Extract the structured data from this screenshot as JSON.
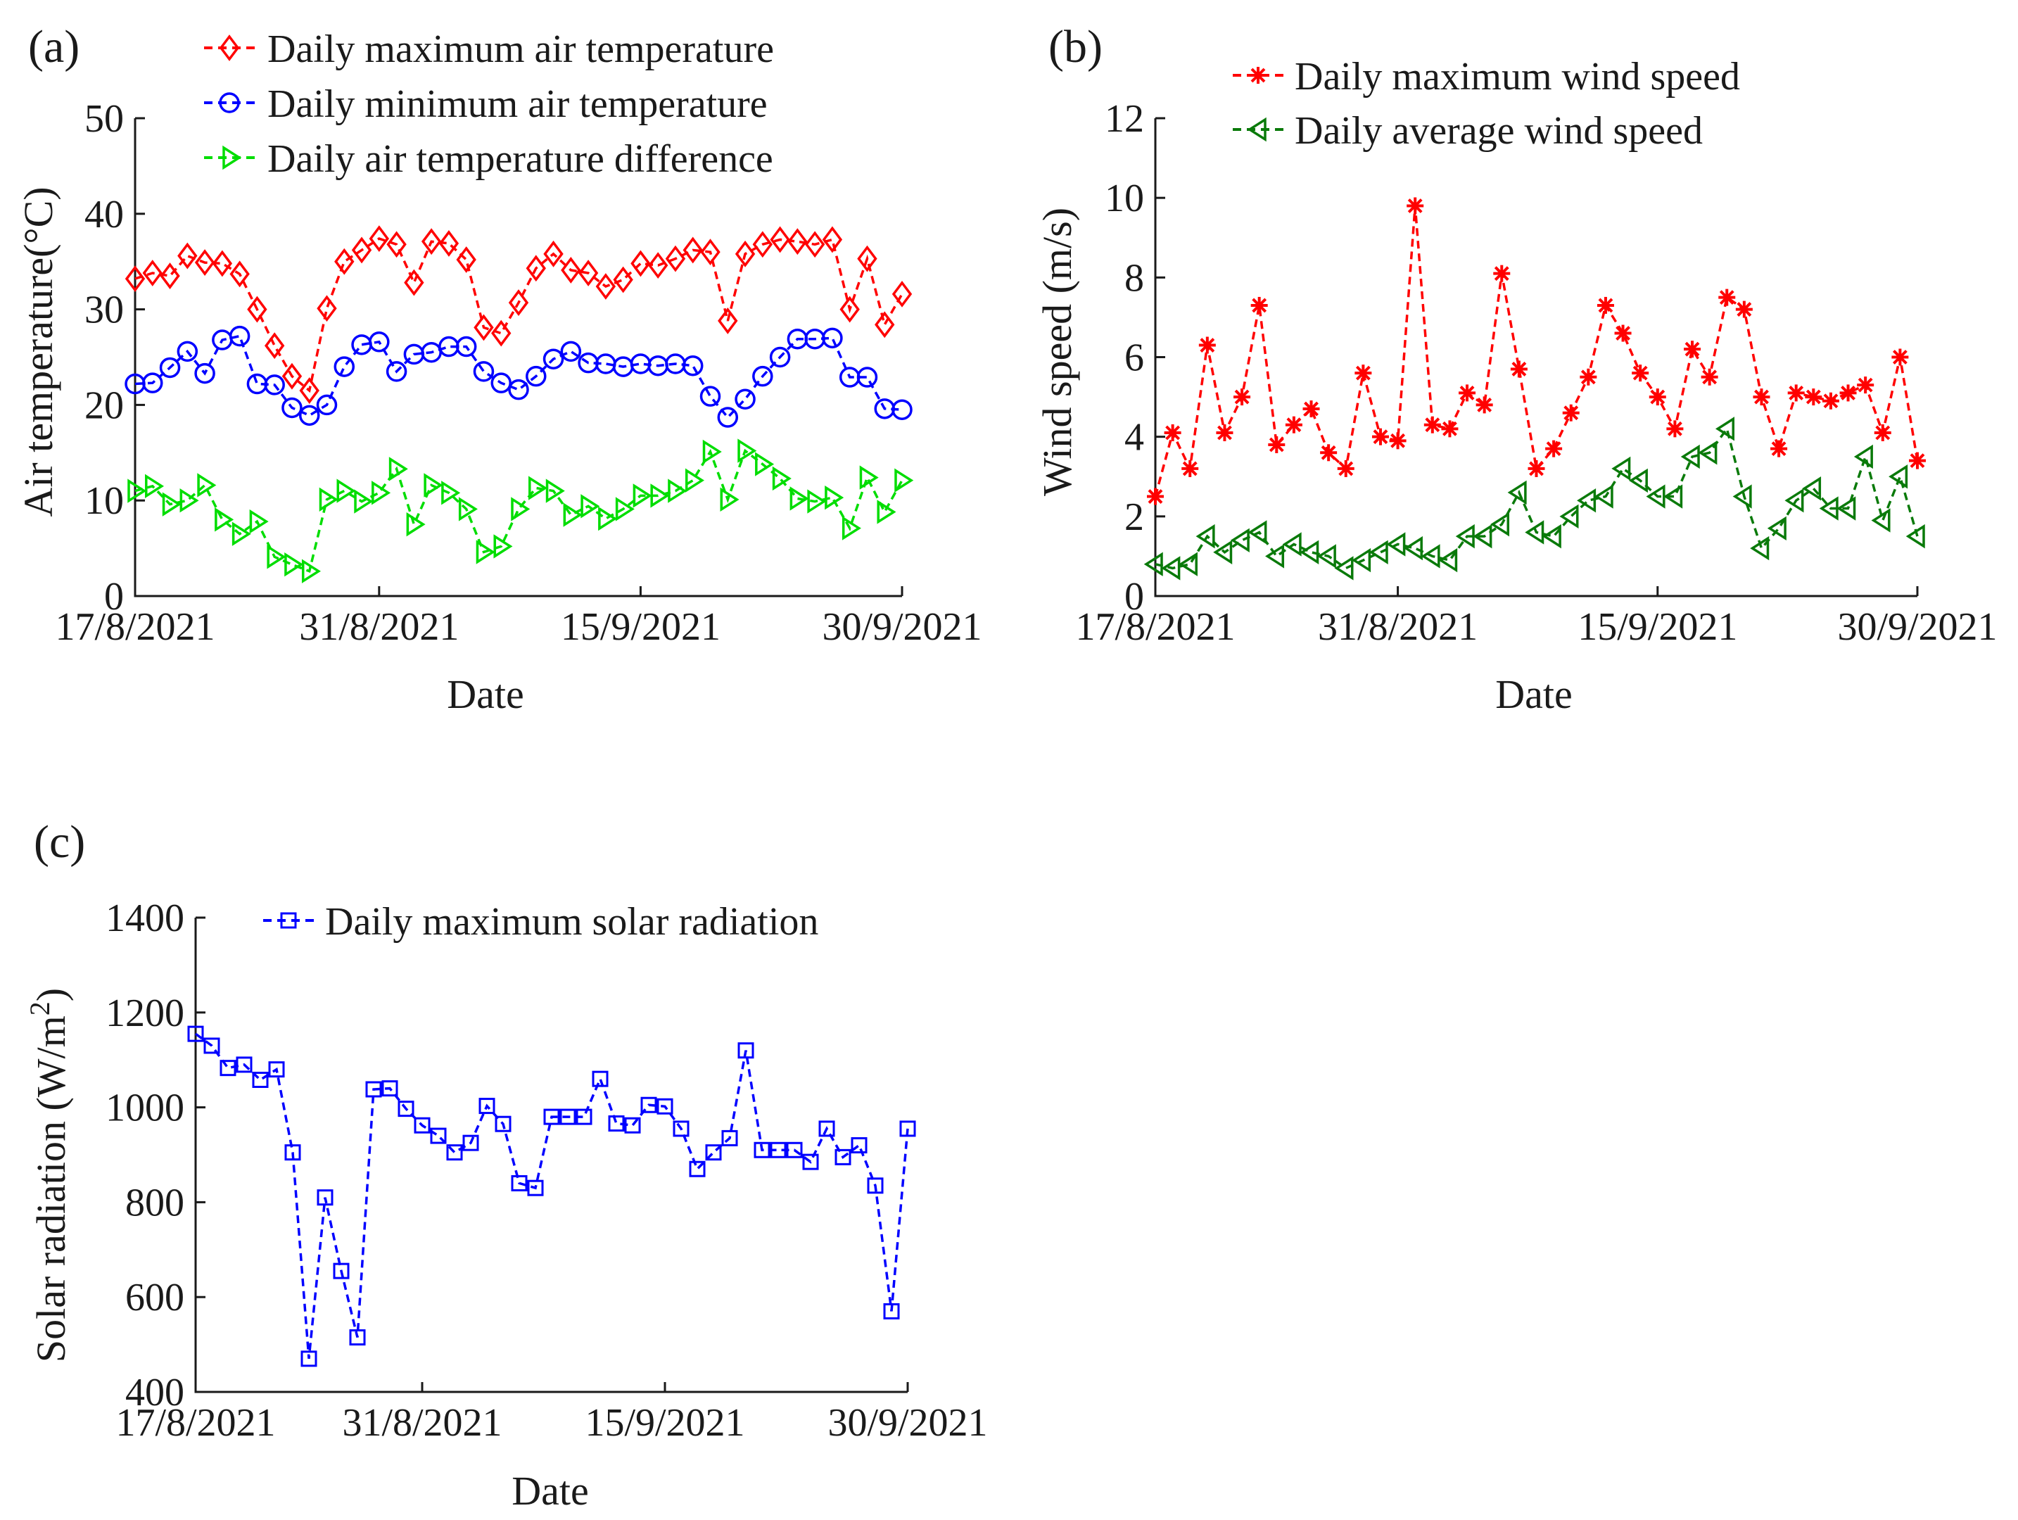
{
  "chart_data": [
    {
      "id": "a",
      "panel_label": "(a)",
      "type": "line",
      "xlabel": "Date",
      "ylabel": "Air temperature(°C)",
      "ylim": [
        0,
        50
      ],
      "yticks": [
        "0",
        "10",
        "20",
        "30",
        "40",
        "50"
      ],
      "xtick_labels": [
        "17/8/2021",
        "31/8/2021",
        "15/9/2021",
        "30/9/2021"
      ],
      "xtick_days": [
        0,
        14,
        29,
        44
      ],
      "grid": false,
      "legend_position": "top",
      "series": [
        {
          "name": "Daily maximum air temperature",
          "color": "#ff0000",
          "marker": "diamond",
          "values": [
            33.2,
            33.8,
            33.5,
            35.6,
            34.9,
            34.8,
            33.7,
            30.0,
            26.2,
            23.0,
            21.5,
            30.1,
            35.0,
            36.2,
            37.4,
            36.8,
            32.8,
            37.1,
            36.9,
            35.2,
            28.1,
            27.5,
            30.7,
            34.3,
            35.8,
            34.1,
            33.8,
            32.4,
            33.1,
            34.8,
            34.6,
            35.3,
            36.2,
            36.0,
            28.8,
            35.8,
            36.8,
            37.3,
            37.1,
            36.8,
            37.3,
            30.0,
            35.3,
            28.4,
            31.6
          ]
        },
        {
          "name": "Daily minimum air temperature",
          "color": "#0000ff",
          "marker": "circle",
          "values": [
            22.2,
            22.3,
            23.9,
            25.6,
            23.3,
            26.8,
            27.2,
            22.2,
            22.1,
            19.7,
            18.9,
            20.0,
            24.0,
            26.3,
            26.6,
            23.5,
            25.3,
            25.5,
            26.1,
            26.1,
            23.5,
            22.3,
            21.6,
            23.0,
            24.8,
            25.6,
            24.4,
            24.3,
            24.0,
            24.3,
            24.1,
            24.3,
            24.1,
            20.9,
            18.7,
            20.6,
            23.0,
            25.0,
            26.9,
            26.9,
            27.0,
            22.9,
            22.9,
            19.6,
            19.5
          ]
        },
        {
          "name": "Daily air temperature difference",
          "color": "#00dd00",
          "marker": "triangle-right",
          "values": [
            11.0,
            11.5,
            9.6,
            10.0,
            11.6,
            8.0,
            6.5,
            7.8,
            4.1,
            3.3,
            2.6,
            10.1,
            11.0,
            9.9,
            10.8,
            13.3,
            7.5,
            11.6,
            10.8,
            9.1,
            4.6,
            5.2,
            9.1,
            11.3,
            11.0,
            8.5,
            9.4,
            8.1,
            9.1,
            10.5,
            10.5,
            11.0,
            12.1,
            15.1,
            10.1,
            15.2,
            13.8,
            12.3,
            10.2,
            9.9,
            10.3,
            7.1,
            12.4,
            8.8,
            12.1
          ]
        }
      ]
    },
    {
      "id": "b",
      "panel_label": "(b)",
      "type": "line",
      "xlabel": "Date",
      "ylabel": "Wind speed (m/s)",
      "ylim": [
        0,
        12
      ],
      "yticks": [
        "0",
        "2",
        "4",
        "6",
        "8",
        "10",
        "12"
      ],
      "xtick_labels": [
        "17/8/2021",
        "31/8/2021",
        "15/9/2021",
        "30/9/2021"
      ],
      "xtick_days": [
        0,
        14,
        29,
        44
      ],
      "grid": false,
      "legend_position": "top",
      "series": [
        {
          "name": "Daily maximum wind speed",
          "color": "#ff0000",
          "marker": "asterisk",
          "values": [
            2.5,
            4.1,
            3.2,
            6.3,
            4.1,
            5.0,
            7.3,
            3.8,
            4.3,
            4.7,
            3.6,
            3.2,
            5.6,
            4.0,
            3.9,
            9.8,
            4.3,
            4.2,
            5.1,
            4.8,
            8.1,
            5.7,
            3.2,
            3.7,
            4.6,
            5.5,
            7.3,
            6.6,
            5.6,
            5.0,
            4.2,
            6.2,
            5.5,
            7.5,
            7.2,
            5.0,
            3.7,
            5.1,
            5.0,
            4.9,
            5.1,
            5.3,
            4.1,
            6.0,
            3.4
          ]
        },
        {
          "name": "Daily average wind speed",
          "color": "#0a7a0a",
          "marker": "triangle-left",
          "values": [
            0.8,
            0.7,
            0.8,
            1.5,
            1.1,
            1.4,
            1.6,
            1.0,
            1.3,
            1.1,
            1.0,
            0.7,
            0.9,
            1.1,
            1.3,
            1.2,
            1.0,
            0.9,
            1.5,
            1.5,
            1.8,
            2.6,
            1.6,
            1.5,
            2.0,
            2.4,
            2.5,
            3.2,
            2.9,
            2.5,
            2.5,
            3.5,
            3.6,
            4.2,
            2.5,
            1.2,
            1.7,
            2.4,
            2.7,
            2.2,
            2.2,
            3.5,
            1.9,
            3.0,
            1.5
          ]
        }
      ]
    },
    {
      "id": "c",
      "panel_label": "(c)",
      "type": "line",
      "xlabel": "Date",
      "ylabel_main": "Solar radiation (W/m",
      "ylabel_sup": "2",
      "ylabel_end": ")",
      "ylim": [
        400,
        1400
      ],
      "yticks": [
        "400",
        "600",
        "800",
        "1000",
        "1200",
        "1400"
      ],
      "xtick_labels": [
        "17/8/2021",
        "31/8/2021",
        "15/9/2021",
        "30/9/2021"
      ],
      "xtick_days": [
        0,
        14,
        29,
        44
      ],
      "grid": false,
      "legend_position": "top",
      "series": [
        {
          "name": "Daily maximum solar radiation",
          "color": "#0000ff",
          "marker": "square",
          "values": [
            1155,
            1130,
            1083,
            1090,
            1058,
            1080,
            905,
            470,
            810,
            655,
            515,
            1038,
            1040,
            997,
            962,
            940,
            905,
            925,
            1003,
            965,
            840,
            830,
            980,
            980,
            980,
            1060,
            966,
            962,
            1005,
            1002,
            955,
            870,
            905,
            935,
            1120,
            910,
            910,
            910,
            885,
            955,
            895,
            920,
            835,
            570,
            955
          ]
        }
      ]
    }
  ]
}
